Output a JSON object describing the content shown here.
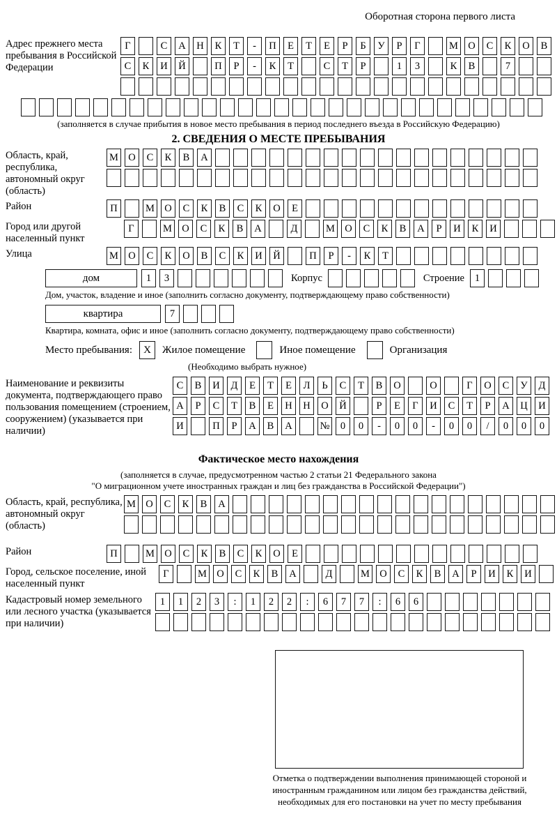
{
  "page": {
    "header_note": "Оборотная сторона первого листа"
  },
  "prev_address": {
    "label": "Адрес прежнего места пребывания в Российской Федерации",
    "rows": [
      [
        "Г",
        "",
        "С",
        "А",
        "Н",
        "К",
        "Т",
        "-",
        "П",
        "Е",
        "Т",
        "Е",
        "Р",
        "Б",
        "У",
        "Р",
        "Г",
        "",
        "М",
        "О",
        "С",
        "К",
        "О",
        "В"
      ],
      [
        "С",
        "К",
        "И",
        "Й",
        "",
        "П",
        "Р",
        "-",
        "К",
        "Т",
        "",
        "С",
        "Т",
        "Р",
        "",
        "1",
        "3",
        "",
        "К",
        "В",
        "",
        "7",
        "",
        ""
      ],
      [
        "",
        "",
        "",
        "",
        "",
        "",
        "",
        "",
        "",
        "",
        "",
        "",
        "",
        "",
        "",
        "",
        "",
        "",
        "",
        "",
        "",
        "",
        "",
        ""
      ]
    ],
    "full_row": [
      "",
      "",
      "",
      "",
      "",
      "",
      "",
      "",
      "",
      "",
      "",
      "",
      "",
      "",
      "",
      "",
      "",
      "",
      "",
      "",
      "",
      "",
      "",
      "",
      "",
      "",
      "",
      "",
      ""
    ],
    "caption": "(заполняется в случае прибытия в новое место пребывания в период последнего въезда в Российскую Федерацию)"
  },
  "section2": {
    "title": "2. СВЕДЕНИЯ О МЕСТЕ ПРЕБЫВАНИЯ",
    "region": {
      "label": "Область, край, республика, автономный округ (область)",
      "rows": [
        [
          "М",
          "О",
          "С",
          "К",
          "В",
          "А",
          "",
          "",
          "",
          "",
          "",
          "",
          "",
          "",
          "",
          "",
          "",
          "",
          "",
          "",
          "",
          "",
          "",
          ""
        ],
        [
          "",
          "",
          "",
          "",
          "",
          "",
          "",
          "",
          "",
          "",
          "",
          "",
          "",
          "",
          "",
          "",
          "",
          "",
          "",
          "",
          "",
          "",
          "",
          ""
        ]
      ]
    },
    "district": {
      "label": "Район",
      "row": [
        "П",
        "",
        "М",
        "О",
        "С",
        "К",
        "В",
        "С",
        "К",
        "О",
        "Е",
        "",
        "",
        "",
        "",
        "",
        "",
        "",
        "",
        "",
        "",
        "",
        "",
        ""
      ]
    },
    "city": {
      "label": "Город или другой населенный пункт",
      "row": [
        "Г",
        "",
        "М",
        "О",
        "С",
        "К",
        "В",
        "А",
        "",
        "Д",
        "",
        "М",
        "О",
        "С",
        "К",
        "В",
        "А",
        "Р",
        "И",
        "К",
        "И",
        "",
        "",
        ""
      ]
    },
    "street": {
      "label": "Улица",
      "row": [
        "М",
        "О",
        "С",
        "К",
        "О",
        "В",
        "С",
        "К",
        "И",
        "Й",
        "",
        "П",
        "Р",
        "-",
        "К",
        "Т",
        "",
        "",
        "",
        "",
        "",
        "",
        "",
        ""
      ]
    },
    "house": {
      "box_label": "дом",
      "cells": [
        "1",
        "3",
        "",
        "",
        "",
        "",
        "",
        ""
      ],
      "korpus_label": "Корпус",
      "korpus_cells": [
        "",
        "",
        "",
        "",
        ""
      ],
      "stroenie_label": "Строение",
      "stroenie_cells": [
        "1",
        "",
        "",
        ""
      ],
      "caption": "Дом, участок, владение и иное (заполнить согласно документу, подтверждающему право собственности)"
    },
    "apartment": {
      "box_label": "квартира",
      "cells": [
        "7",
        "",
        "",
        ""
      ],
      "caption": "Квартира, комната, офис и иное (заполнить согласно документу, подтверждающему право собственности)"
    },
    "stay_type": {
      "label": "Место пребывания:",
      "options": [
        {
          "label": "Жилое помещение",
          "mark": "X"
        },
        {
          "label": "Иное помещение",
          "mark": ""
        },
        {
          "label": "Организация",
          "mark": ""
        }
      ],
      "note": "(Необходимо выбрать нужное)"
    },
    "document": {
      "label": "Наименование и реквизиты документа, подтверждающего право пользования помещением (строением, сооружением) (указывается при наличии)",
      "rows": [
        [
          "С",
          "В",
          "И",
          "Д",
          "Е",
          "Т",
          "Е",
          "Л",
          "Ь",
          "С",
          "Т",
          "В",
          "О",
          "",
          "О",
          "",
          "Г",
          "О",
          "С",
          "У",
          "Д"
        ],
        [
          "А",
          "Р",
          "С",
          "Т",
          "В",
          "Е",
          "Н",
          "Н",
          "О",
          "Й",
          "",
          "Р",
          "Е",
          "Г",
          "И",
          "С",
          "Т",
          "Р",
          "А",
          "Ц",
          "И"
        ],
        [
          "И",
          "",
          "П",
          "Р",
          "А",
          "В",
          "А",
          "",
          "№",
          "0",
          "0",
          "-",
          "0",
          "0",
          "-",
          "0",
          "0",
          "/",
          "0",
          "0",
          "0"
        ]
      ]
    }
  },
  "actual_location": {
    "title": "Фактическое место нахождения",
    "caption_line1": "(заполняется в случае, предусмотренном частью 2 статьи 21 Федерального закона",
    "caption_line2": "\"О миграционном учете иностранных граждан и лиц без гражданства в Российской Федерации\")",
    "region": {
      "label": "Область, край, республика, автономный округ (область)",
      "rows": [
        [
          "М",
          "О",
          "С",
          "К",
          "В",
          "А",
          "",
          "",
          "",
          "",
          "",
          "",
          "",
          "",
          "",
          "",
          "",
          "",
          "",
          "",
          "",
          "",
          "",
          ""
        ],
        [
          "",
          "",
          "",
          "",
          "",
          "",
          "",
          "",
          "",
          "",
          "",
          "",
          "",
          "",
          "",
          "",
          "",
          "",
          "",
          "",
          "",
          "",
          "",
          ""
        ]
      ]
    },
    "district": {
      "label": "Район",
      "row": [
        "П",
        "",
        "М",
        "О",
        "С",
        "К",
        "В",
        "С",
        "К",
        "О",
        "Е",
        "",
        "",
        "",
        "",
        "",
        "",
        "",
        "",
        "",
        "",
        "",
        "",
        ""
      ]
    },
    "city": {
      "label": "Город, сельское поселение, иной населенный пункт",
      "row": [
        "Г",
        "",
        "М",
        "О",
        "С",
        "К",
        "В",
        "А",
        "",
        "Д",
        "",
        "М",
        "О",
        "С",
        "К",
        "В",
        "А",
        "Р",
        "И",
        "К",
        "И",
        ""
      ]
    },
    "cadastral": {
      "label": "Кадастровый номер земельного или лесного участка (указывается при наличии)",
      "rows": [
        [
          "1",
          "1",
          "2",
          "3",
          ":",
          "1",
          "2",
          "2",
          ":",
          "6",
          "7",
          "7",
          ":",
          "6",
          "6",
          "",
          "",
          "",
          "",
          "",
          "",
          ""
        ],
        [
          "",
          "",
          "",
          "",
          "",
          "",
          "",
          "",
          "",
          "",
          "",
          "",
          "",
          "",
          "",
          "",
          "",
          "",
          "",
          "",
          "",
          ""
        ]
      ]
    }
  },
  "stamp": {
    "caption": "Отметка о подтверждении выполнения принимающей стороной и иностранным гражданином или лицом без гражданства действий, необходимых для его постановки на учет по месту пребывания"
  }
}
